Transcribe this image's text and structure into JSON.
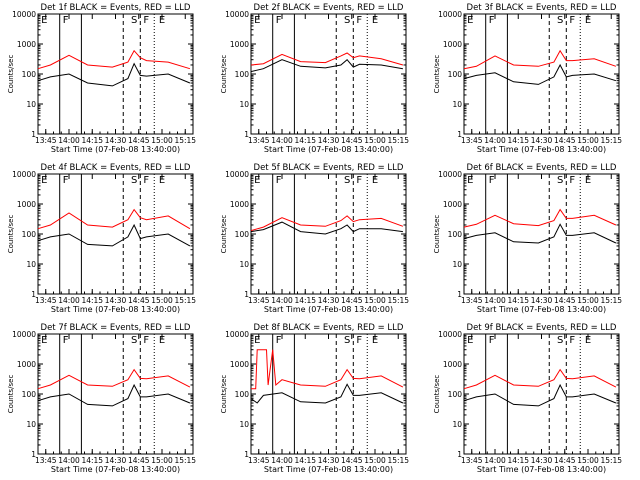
{
  "colors": {
    "events": "#000000",
    "lld": "#ff0000",
    "axes": "#000000",
    "background": "#ffffff"
  },
  "common": {
    "xlabel": "Start Time (07-Feb-08 13:40:00)",
    "ylabel": "Counts/sec",
    "x_ticks": [
      "13:45",
      "14:00",
      "14:15",
      "14:30",
      "14:45",
      "15:00",
      "15:15"
    ],
    "y_ticks": [
      "1",
      "10",
      "100",
      "1000",
      "10000"
    ],
    "region_labels": [
      "E",
      "F",
      "S",
      "F",
      "E"
    ]
  },
  "chart_data": [
    {
      "type": "line",
      "title": "Det 1f BLACK = Events, RED = LLD",
      "xlim": [
        "13:40",
        "15:20"
      ],
      "ylim": [
        1,
        10000
      ],
      "y_scale": "log",
      "series": [
        {
          "color": "red",
          "values": [
            [
              0,
              150
            ],
            [
              8,
              200
            ],
            [
              20,
              420
            ],
            [
              32,
              200
            ],
            [
              48,
              170
            ],
            [
              58,
              250
            ],
            [
              62,
              600
            ],
            [
              66,
              350
            ],
            [
              70,
              280
            ],
            [
              84,
              250
            ],
            [
              98,
              150
            ]
          ]
        },
        {
          "color": "black",
          "values": [
            [
              0,
              60
            ],
            [
              8,
              80
            ],
            [
              20,
              100
            ],
            [
              32,
              50
            ],
            [
              48,
              40
            ],
            [
              58,
              70
            ],
            [
              62,
              220
            ],
            [
              66,
              90
            ],
            [
              70,
              85
            ],
            [
              84,
              100
            ],
            [
              98,
              50
            ]
          ]
        }
      ]
    },
    {
      "type": "line",
      "title": "Det 2f BLACK = Events, RED = LLD",
      "xlim": [
        "13:40",
        "15:20"
      ],
      "ylim": [
        1,
        10000
      ],
      "y_scale": "log",
      "series": [
        {
          "color": "red",
          "values": [
            [
              0,
              200
            ],
            [
              8,
              220
            ],
            [
              20,
              450
            ],
            [
              32,
              260
            ],
            [
              48,
              240
            ],
            [
              58,
              400
            ],
            [
              62,
              500
            ],
            [
              66,
              350
            ],
            [
              70,
              400
            ],
            [
              84,
              320
            ],
            [
              98,
              200
            ]
          ]
        },
        {
          "color": "black",
          "values": [
            [
              0,
              120
            ],
            [
              8,
              150
            ],
            [
              20,
              300
            ],
            [
              32,
              180
            ],
            [
              48,
              160
            ],
            [
              58,
              200
            ],
            [
              62,
              300
            ],
            [
              66,
              170
            ],
            [
              70,
              210
            ],
            [
              84,
              200
            ],
            [
              98,
              150
            ]
          ]
        }
      ]
    },
    {
      "type": "line",
      "title": "Det 3f BLACK = Events, RED = LLD",
      "xlim": [
        "13:40",
        "15:20"
      ],
      "ylim": [
        1,
        10000
      ],
      "y_scale": "log",
      "series": [
        {
          "color": "red",
          "values": [
            [
              0,
              150
            ],
            [
              8,
              180
            ],
            [
              20,
              400
            ],
            [
              32,
              200
            ],
            [
              48,
              180
            ],
            [
              58,
              250
            ],
            [
              62,
              600
            ],
            [
              66,
              280
            ],
            [
              70,
              280
            ],
            [
              84,
              320
            ],
            [
              98,
              180
            ]
          ]
        },
        {
          "color": "black",
          "values": [
            [
              0,
              70
            ],
            [
              8,
              90
            ],
            [
              20,
              110
            ],
            [
              32,
              55
            ],
            [
              48,
              45
            ],
            [
              58,
              80
            ],
            [
              62,
              200
            ],
            [
              66,
              80
            ],
            [
              70,
              90
            ],
            [
              84,
              100
            ],
            [
              98,
              60
            ]
          ]
        }
      ]
    },
    {
      "type": "line",
      "title": "Det 4f BLACK = Events, RED = LLD",
      "xlim": [
        "13:40",
        "15:20"
      ],
      "ylim": [
        1,
        10000
      ],
      "y_scale": "log",
      "series": [
        {
          "color": "red",
          "values": [
            [
              0,
              150
            ],
            [
              8,
              200
            ],
            [
              20,
              500
            ],
            [
              32,
              200
            ],
            [
              48,
              170
            ],
            [
              58,
              300
            ],
            [
              62,
              650
            ],
            [
              66,
              350
            ],
            [
              70,
              300
            ],
            [
              84,
              400
            ],
            [
              98,
              150
            ]
          ]
        },
        {
          "color": "black",
          "values": [
            [
              0,
              60
            ],
            [
              8,
              80
            ],
            [
              20,
              100
            ],
            [
              32,
              45
            ],
            [
              48,
              40
            ],
            [
              58,
              80
            ],
            [
              62,
              200
            ],
            [
              66,
              70
            ],
            [
              70,
              80
            ],
            [
              84,
              100
            ],
            [
              98,
              40
            ]
          ]
        }
      ]
    },
    {
      "type": "line",
      "title": "Det 5f BLACK = Events, RED = LLD",
      "xlim": [
        "13:40",
        "15:20"
      ],
      "ylim": [
        1,
        10000
      ],
      "y_scale": "log",
      "series": [
        {
          "color": "red",
          "values": [
            [
              0,
              130
            ],
            [
              8,
              170
            ],
            [
              20,
              350
            ],
            [
              32,
              200
            ],
            [
              48,
              180
            ],
            [
              58,
              280
            ],
            [
              62,
              400
            ],
            [
              66,
              260
            ],
            [
              70,
              300
            ],
            [
              84,
              330
            ],
            [
              98,
              180
            ]
          ]
        },
        {
          "color": "black",
          "values": [
            [
              0,
              120
            ],
            [
              8,
              140
            ],
            [
              20,
              250
            ],
            [
              32,
              120
            ],
            [
              48,
              100
            ],
            [
              58,
              150
            ],
            [
              62,
              200
            ],
            [
              66,
              120
            ],
            [
              70,
              150
            ],
            [
              84,
              150
            ],
            [
              98,
              120
            ]
          ]
        }
      ]
    },
    {
      "type": "line",
      "title": "Det 6f BLACK = Events, RED = LLD",
      "xlim": [
        "13:40",
        "15:20"
      ],
      "ylim": [
        1,
        10000
      ],
      "y_scale": "log",
      "series": [
        {
          "color": "red",
          "values": [
            [
              0,
              170
            ],
            [
              8,
              210
            ],
            [
              20,
              420
            ],
            [
              32,
              220
            ],
            [
              48,
              190
            ],
            [
              58,
              280
            ],
            [
              62,
              650
            ],
            [
              66,
              330
            ],
            [
              70,
              330
            ],
            [
              84,
              420
            ],
            [
              98,
              200
            ]
          ]
        },
        {
          "color": "black",
          "values": [
            [
              0,
              70
            ],
            [
              8,
              90
            ],
            [
              20,
              110
            ],
            [
              32,
              55
            ],
            [
              48,
              50
            ],
            [
              58,
              80
            ],
            [
              62,
              210
            ],
            [
              66,
              90
            ],
            [
              70,
              90
            ],
            [
              84,
              110
            ],
            [
              98,
              50
            ]
          ]
        }
      ]
    },
    {
      "type": "line",
      "title": "Det 7f BLACK = Events, RED = LLD",
      "xlim": [
        "13:40",
        "15:20"
      ],
      "ylim": [
        1,
        10000
      ],
      "y_scale": "log",
      "series": [
        {
          "color": "red",
          "values": [
            [
              0,
              150
            ],
            [
              8,
              200
            ],
            [
              20,
              420
            ],
            [
              32,
              200
            ],
            [
              48,
              180
            ],
            [
              58,
              300
            ],
            [
              62,
              650
            ],
            [
              66,
              330
            ],
            [
              70,
              320
            ],
            [
              84,
              400
            ],
            [
              98,
              170
            ]
          ]
        },
        {
          "color": "black",
          "values": [
            [
              0,
              60
            ],
            [
              8,
              80
            ],
            [
              20,
              100
            ],
            [
              32,
              45
            ],
            [
              48,
              40
            ],
            [
              58,
              70
            ],
            [
              62,
              200
            ],
            [
              66,
              80
            ],
            [
              70,
              80
            ],
            [
              84,
              100
            ],
            [
              98,
              50
            ]
          ]
        }
      ]
    },
    {
      "type": "line",
      "title": "Det 8f BLACK = Events, RED = LLD",
      "xlim": [
        "13:40",
        "15:20"
      ],
      "ylim": [
        1,
        10000
      ],
      "y_scale": "log",
      "series": [
        {
          "color": "red",
          "values": [
            [
              0,
              150
            ],
            [
              3,
              150
            ],
            [
              4,
              3000
            ],
            [
              10,
              3000
            ],
            [
              11,
              200
            ],
            [
              14,
              3000
            ],
            [
              16,
              200
            ],
            [
              20,
              300
            ],
            [
              32,
              200
            ],
            [
              48,
              180
            ],
            [
              58,
              300
            ],
            [
              62,
              650
            ],
            [
              66,
              330
            ],
            [
              70,
              320
            ],
            [
              84,
              400
            ],
            [
              98,
              170
            ]
          ]
        },
        {
          "color": "black",
          "values": [
            [
              0,
              70
            ],
            [
              4,
              50
            ],
            [
              8,
              90
            ],
            [
              20,
              110
            ],
            [
              32,
              55
            ],
            [
              48,
              50
            ],
            [
              58,
              80
            ],
            [
              62,
              210
            ],
            [
              66,
              90
            ],
            [
              70,
              90
            ],
            [
              84,
              110
            ],
            [
              98,
              50
            ]
          ]
        }
      ]
    },
    {
      "type": "line",
      "title": "Det 9f BLACK = Events, RED = LLD",
      "xlim": [
        "13:40",
        "15:20"
      ],
      "ylim": [
        1,
        10000
      ],
      "y_scale": "log",
      "series": [
        {
          "color": "red",
          "values": [
            [
              0,
              150
            ],
            [
              8,
              200
            ],
            [
              20,
              420
            ],
            [
              32,
              200
            ],
            [
              48,
              180
            ],
            [
              58,
              300
            ],
            [
              62,
              650
            ],
            [
              66,
              330
            ],
            [
              70,
              320
            ],
            [
              84,
              400
            ],
            [
              98,
              170
            ]
          ]
        },
        {
          "color": "black",
          "values": [
            [
              0,
              60
            ],
            [
              8,
              80
            ],
            [
              20,
              100
            ],
            [
              32,
              45
            ],
            [
              48,
              40
            ],
            [
              58,
              70
            ],
            [
              62,
              200
            ],
            [
              66,
              80
            ],
            [
              70,
              80
            ],
            [
              84,
              100
            ],
            [
              98,
              50
            ]
          ]
        }
      ]
    }
  ]
}
